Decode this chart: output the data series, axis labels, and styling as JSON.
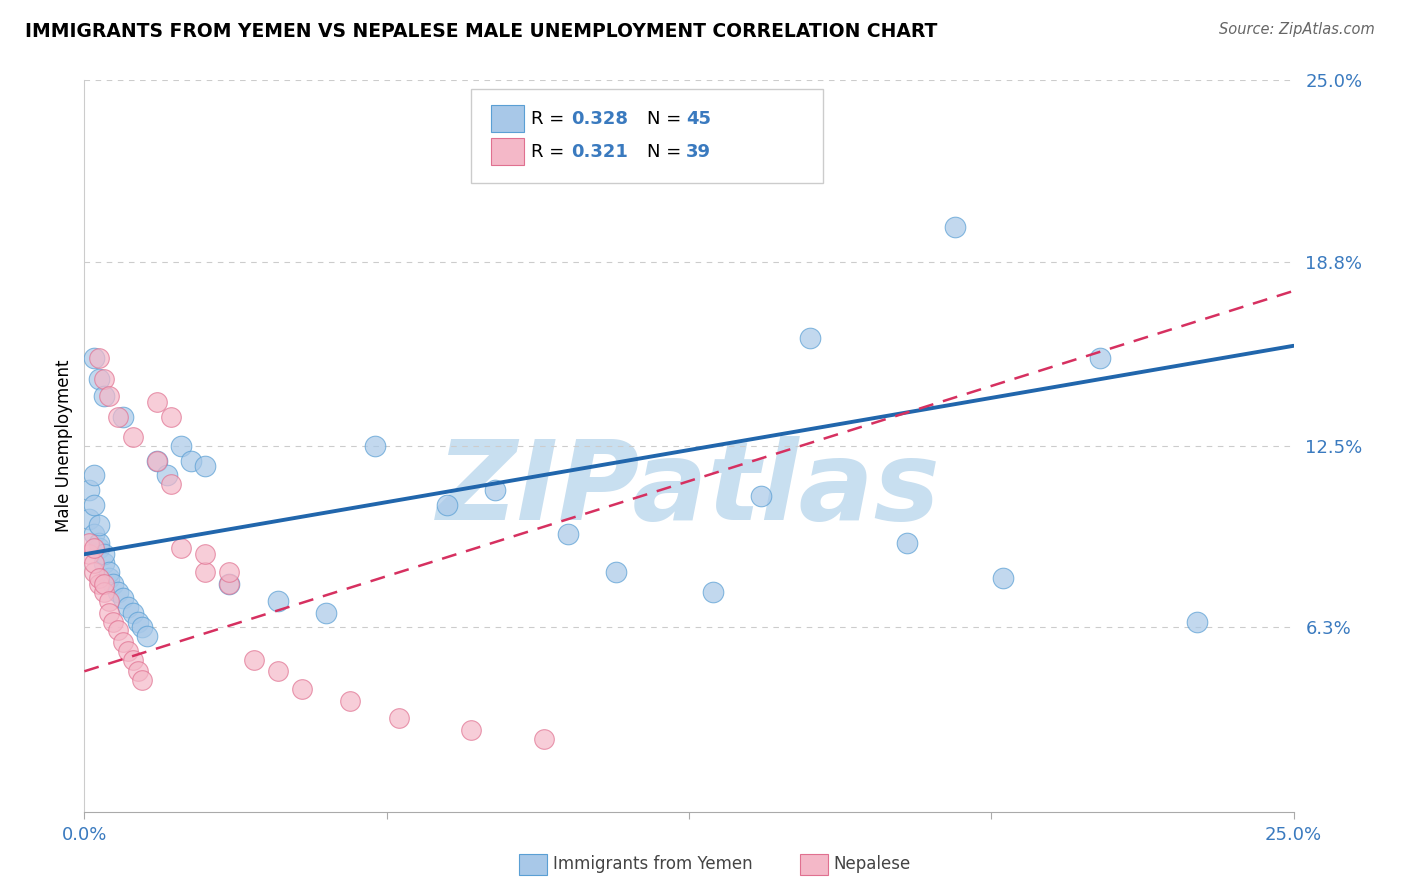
{
  "title": "IMMIGRANTS FROM YEMEN VS NEPALESE MALE UNEMPLOYMENT CORRELATION CHART",
  "source": "Source: ZipAtlas.com",
  "ylabel": "Male Unemployment",
  "xmin": 0.0,
  "xmax": 0.25,
  "ymin": 0.0,
  "ymax": 0.25,
  "yticks": [
    0.063,
    0.125,
    0.188,
    0.25
  ],
  "ytick_labels": [
    "6.3%",
    "12.5%",
    "18.8%",
    "25.0%"
  ],
  "xticks": [
    0.0,
    0.0625,
    0.125,
    0.1875,
    0.25
  ],
  "xtick_labels": [
    "0.0%",
    "",
    "",
    "",
    "25.0%"
  ],
  "blue_color": "#a8c8e8",
  "pink_color": "#f4b8c8",
  "blue_edge_color": "#5a9fd4",
  "pink_edge_color": "#e07090",
  "blue_line_color": "#2166ac",
  "pink_line_color": "#d63060",
  "watermark": "ZIPatlas",
  "watermark_color": "#c8dff0",
  "blue_intercept": 0.088,
  "blue_slope": 0.285,
  "pink_intercept": 0.048,
  "pink_slope": 0.52,
  "blue_x": [
    0.001,
    0.001,
    0.002,
    0.002,
    0.002,
    0.003,
    0.003,
    0.003,
    0.004,
    0.004,
    0.005,
    0.005,
    0.006,
    0.007,
    0.008,
    0.009,
    0.01,
    0.011,
    0.012,
    0.013,
    0.015,
    0.017,
    0.02,
    0.022,
    0.025,
    0.03,
    0.04,
    0.05,
    0.06,
    0.075,
    0.085,
    0.1,
    0.11,
    0.13,
    0.15,
    0.17,
    0.19,
    0.21,
    0.23,
    0.002,
    0.003,
    0.004,
    0.008,
    0.14,
    0.18
  ],
  "blue_y": [
    0.1,
    0.11,
    0.095,
    0.105,
    0.115,
    0.09,
    0.092,
    0.098,
    0.085,
    0.088,
    0.08,
    0.082,
    0.078,
    0.075,
    0.073,
    0.07,
    0.068,
    0.065,
    0.063,
    0.06,
    0.12,
    0.115,
    0.125,
    0.12,
    0.118,
    0.078,
    0.072,
    0.068,
    0.125,
    0.105,
    0.11,
    0.095,
    0.082,
    0.075,
    0.162,
    0.092,
    0.08,
    0.155,
    0.065,
    0.155,
    0.148,
    0.142,
    0.135,
    0.108,
    0.2
  ],
  "pink_x": [
    0.001,
    0.001,
    0.002,
    0.002,
    0.002,
    0.003,
    0.003,
    0.004,
    0.004,
    0.005,
    0.005,
    0.006,
    0.007,
    0.008,
    0.009,
    0.01,
    0.011,
    0.012,
    0.015,
    0.018,
    0.02,
    0.025,
    0.03,
    0.035,
    0.04,
    0.045,
    0.055,
    0.065,
    0.08,
    0.095,
    0.003,
    0.004,
    0.005,
    0.007,
    0.01,
    0.015,
    0.018,
    0.025,
    0.03
  ],
  "pink_y": [
    0.088,
    0.092,
    0.082,
    0.085,
    0.09,
    0.078,
    0.08,
    0.075,
    0.078,
    0.072,
    0.068,
    0.065,
    0.062,
    0.058,
    0.055,
    0.052,
    0.048,
    0.045,
    0.14,
    0.135,
    0.09,
    0.082,
    0.078,
    0.052,
    0.048,
    0.042,
    0.038,
    0.032,
    0.028,
    0.025,
    0.155,
    0.148,
    0.142,
    0.135,
    0.128,
    0.12,
    0.112,
    0.088,
    0.082
  ]
}
